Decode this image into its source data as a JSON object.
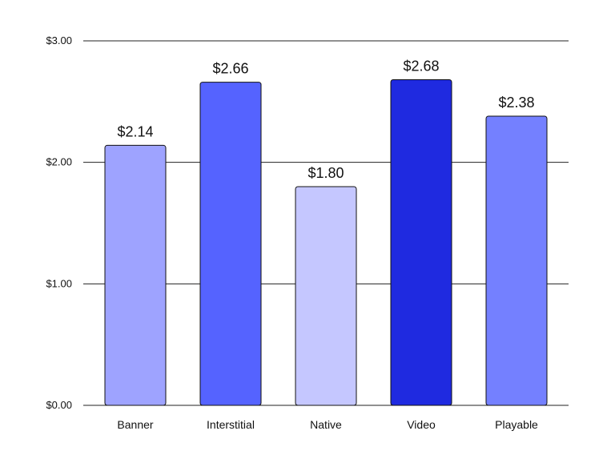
{
  "chart_data": {
    "type": "bar",
    "categories": [
      "Banner",
      "Interstitial",
      "Native",
      "Video",
      "Playable"
    ],
    "values": [
      2.14,
      2.66,
      1.8,
      2.68,
      2.38
    ],
    "value_labels": [
      "$2.14",
      "$2.66",
      "$1.80",
      "$2.68",
      "$2.38"
    ],
    "bar_colors": [
      "#9EA3FF",
      "#5563FF",
      "#C5C7FF",
      "#1F2AE0",
      "#7480FF"
    ],
    "y_ticks": [
      {
        "value": 0,
        "label": "$0.00"
      },
      {
        "value": 1,
        "label": "$1.00"
      },
      {
        "value": 2,
        "label": "$2.00"
      },
      {
        "value": 3,
        "label": "$3.00"
      }
    ],
    "ylim": [
      0,
      3
    ],
    "grid": true,
    "title": "",
    "xlabel": "",
    "ylabel": ""
  }
}
